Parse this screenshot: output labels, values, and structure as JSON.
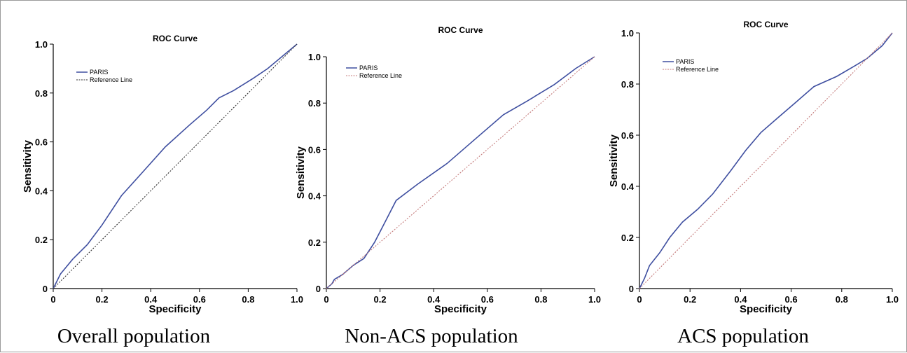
{
  "chart_data": [
    {
      "type": "line",
      "title": "ROC Curve",
      "xlabel": "Specificity",
      "ylabel": "Sensitivity",
      "xlim": [
        0,
        1
      ],
      "ylim": [
        0,
        1
      ],
      "xticks": [
        "0",
        "0.2",
        "0.4",
        "0.6",
        "0.8",
        "1.0"
      ],
      "yticks": [
        "0",
        "0.2",
        "0.4",
        "0.6",
        "0.8",
        "1.0"
      ],
      "legend_position": "top-left",
      "caption": "Overall population",
      "series": [
        {
          "name": "PARIS",
          "color": "#3f4fa0",
          "style": "solid",
          "x": [
            0,
            0.03,
            0.08,
            0.14,
            0.2,
            0.28,
            0.37,
            0.46,
            0.56,
            0.63,
            0.68,
            0.74,
            0.82,
            0.88,
            0.94,
            1.0
          ],
          "y": [
            0,
            0.06,
            0.12,
            0.18,
            0.26,
            0.38,
            0.48,
            0.58,
            0.67,
            0.73,
            0.78,
            0.81,
            0.86,
            0.9,
            0.95,
            1.0
          ]
        },
        {
          "name": "Reference Line",
          "color": "#333333",
          "style": "dotted",
          "x": [
            0,
            1
          ],
          "y": [
            0,
            1
          ]
        }
      ]
    },
    {
      "type": "line",
      "title": "ROC Curve",
      "xlabel": "Specificity",
      "ylabel": "Sensitivity",
      "xlim": [
        0,
        1
      ],
      "ylim": [
        0,
        1
      ],
      "xticks": [
        "0",
        "0.2",
        "0.4",
        "0.6",
        "0.8",
        "1.0"
      ],
      "yticks": [
        "0",
        "0.2",
        "0.4",
        "0.6",
        "0.8",
        "1.0"
      ],
      "legend_position": "top-left",
      "caption": "Non-ACS population",
      "series": [
        {
          "name": "PARIS",
          "color": "#3f4fa0",
          "style": "solid",
          "x": [
            0,
            0.01,
            0.02,
            0.03,
            0.06,
            0.1,
            0.14,
            0.18,
            0.22,
            0.26,
            0.34,
            0.45,
            0.55,
            0.66,
            0.75,
            0.85,
            0.93,
            1.0
          ],
          "y": [
            0,
            0.01,
            0.02,
            0.04,
            0.06,
            0.1,
            0.13,
            0.2,
            0.29,
            0.38,
            0.45,
            0.54,
            0.64,
            0.75,
            0.81,
            0.88,
            0.95,
            1.0
          ]
        },
        {
          "name": "Reference Line",
          "color": "#c47a7a",
          "style": "dotted",
          "x": [
            0,
            1
          ],
          "y": [
            0,
            1
          ]
        }
      ]
    },
    {
      "type": "line",
      "title": "ROC Curve",
      "xlabel": "Specificity",
      "ylabel": "Sensitivity",
      "xlim": [
        0,
        1
      ],
      "ylim": [
        0,
        1
      ],
      "xticks": [
        "0",
        "0.2",
        "0.4",
        "0.6",
        "0.8",
        "1.0"
      ],
      "yticks": [
        "0",
        "0.2",
        "0.4",
        "0.6",
        "0.8",
        "1.0"
      ],
      "legend_position": "top-left",
      "caption": "ACS population",
      "series": [
        {
          "name": "PARIS",
          "color": "#3f4fa0",
          "style": "solid",
          "x": [
            0,
            0.02,
            0.04,
            0.08,
            0.12,
            0.17,
            0.23,
            0.29,
            0.36,
            0.42,
            0.48,
            0.55,
            0.62,
            0.69,
            0.78,
            0.85,
            0.9,
            0.96,
            1.0
          ],
          "y": [
            0,
            0.04,
            0.09,
            0.14,
            0.2,
            0.26,
            0.31,
            0.37,
            0.46,
            0.54,
            0.61,
            0.67,
            0.73,
            0.79,
            0.83,
            0.87,
            0.9,
            0.95,
            1.0
          ]
        },
        {
          "name": "Reference Line",
          "color": "#c47a7a",
          "style": "dotted",
          "x": [
            0,
            1
          ],
          "y": [
            0,
            1
          ]
        }
      ]
    }
  ]
}
